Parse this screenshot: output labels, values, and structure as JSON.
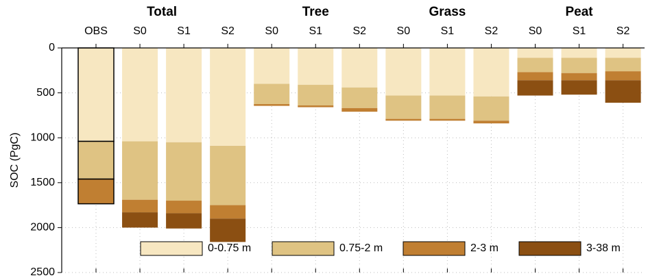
{
  "chart_data": {
    "type": "stacked_bar",
    "ylabel": "SOC (PgC)",
    "groups": [
      {
        "name": "Total",
        "categories": [
          "OBS",
          "S0",
          "S1",
          "S2"
        ]
      },
      {
        "name": "Tree",
        "categories": [
          "S0",
          "S1",
          "S2"
        ]
      },
      {
        "name": "Grass",
        "categories": [
          "S0",
          "S1",
          "S2"
        ]
      },
      {
        "name": "Peat",
        "categories": [
          "S0",
          "S1",
          "S2"
        ]
      }
    ],
    "series": [
      {
        "name": "0-0.75 m",
        "color": "#f7e7c1",
        "values": [
          1040,
          1040,
          1050,
          1090,
          400,
          410,
          440,
          530,
          530,
          540,
          110,
          110,
          110
        ]
      },
      {
        "name": "0.75-2 m",
        "color": "#dfc383",
        "values": [
          420,
          650,
          650,
          660,
          225,
          230,
          230,
          260,
          260,
          270,
          160,
          170,
          150
        ]
      },
      {
        "name": "2-3 m",
        "color": "#c07f32",
        "values": [
          275,
          140,
          140,
          150,
          20,
          20,
          40,
          20,
          20,
          30,
          90,
          80,
          100
        ]
      },
      {
        "name": "3-38 m",
        "color": "#8b4f12",
        "values": [
          null,
          170,
          170,
          260,
          null,
          null,
          null,
          null,
          null,
          null,
          170,
          160,
          250
        ]
      }
    ],
    "bar_edgecolor": [
      "#000000",
      null,
      null,
      null,
      null,
      null,
      null,
      null,
      null,
      null,
      null,
      null,
      null
    ],
    "ylim": [
      0,
      2500
    ],
    "yticks": [
      0,
      500,
      1000,
      1500,
      2000,
      2500
    ],
    "y_inverted": true,
    "grid": true,
    "legend": "lower center"
  }
}
